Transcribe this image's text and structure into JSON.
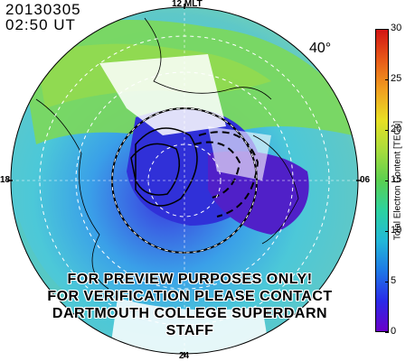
{
  "header": {
    "date": "20130305",
    "time": "02:50  UT"
  },
  "map": {
    "mlt_labels": {
      "top": "12 MLT",
      "left": "18",
      "right": "06",
      "bottom": "24"
    },
    "latitude_label": "40°",
    "watermark": [
      "FOR PREVIEW PURPOSES ONLY!",
      "FOR VERIFICATION PLEASE CONTACT",
      "DARTMOUTH COLLEGE SUPERDARN STAFF"
    ]
  },
  "colorbar": {
    "title": "Total Electron Content [TECu]",
    "min": 0,
    "max": 30,
    "ticks": [
      "0",
      "5",
      "10",
      "15",
      "20",
      "25",
      "30"
    ],
    "colors": [
      "#6a00c8",
      "#2a2ae8",
      "#1e78e6",
      "#22b8d8",
      "#2cd2a0",
      "#5ad050",
      "#a8dc3c",
      "#e8e024",
      "#f0a020",
      "#e85a18",
      "#d21414"
    ]
  }
}
